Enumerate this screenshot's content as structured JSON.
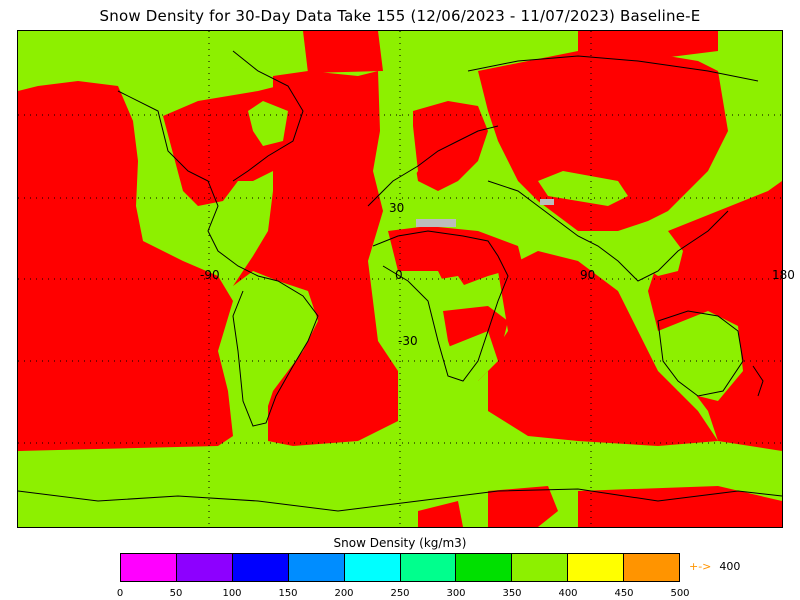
{
  "title": "Snow Density for 30-Day Data Take 155 (12/06/2023 - 11/07/2023) Baseline-E",
  "map": {
    "lat_labels": [
      "30",
      "0",
      "-30"
    ],
    "lon_labels": [
      "-90",
      "0",
      "90",
      "180"
    ],
    "colors": {
      "land_low_density": "#8df000",
      "high_density": "#ff0000",
      "no_data": "#bcbcbc",
      "coastline": "#000000",
      "grid": "#000000"
    }
  },
  "colorbar": {
    "title": "Snow Density (kg/m3)",
    "ticks": [
      "0",
      "50",
      "100",
      "150",
      "200",
      "250",
      "300",
      "350",
      "400",
      "450",
      "500"
    ],
    "colors": [
      "#ff00ff",
      "#8d00ff",
      "#0000ff",
      "#008dff",
      "#00ffff",
      "#00ff8d",
      "#00e000",
      "#8df000",
      "#ffff00",
      "#ff9400"
    ],
    "overflow_arrow": "+->",
    "overflow_value": "400"
  }
}
